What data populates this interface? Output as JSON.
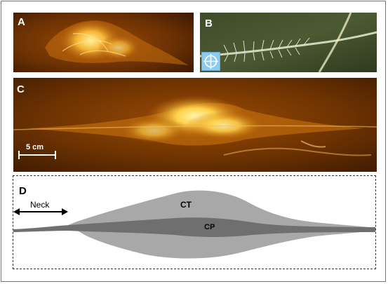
{
  "panels": {
    "a": {
      "label": "A"
    },
    "b": {
      "label": "B"
    },
    "c": {
      "label": "C",
      "scale_bar_label": "5 cm"
    },
    "d": {
      "label": "D",
      "neck_label": "Neck",
      "ct_label": "CT",
      "cp_label": "CP"
    }
  },
  "icons": {
    "panel_b_overlay": "crosshair-icon"
  },
  "colors": {
    "frame_border": "#2f8fa0",
    "photo_dark": "#5a2a02",
    "photo_glow": "#ffd24a",
    "diagram_ct": "#a8a8a8",
    "diagram_cp": "#6f6f6f"
  }
}
